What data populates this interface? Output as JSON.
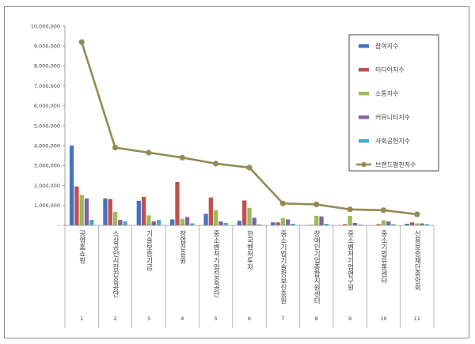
{
  "chart_data": {
    "type": "bar",
    "categories": [
      "공영홈쇼핑",
      "소상공인시장진흥공단",
      "기술보증기금",
      "창업진흥원",
      "중소벤처기업진흥공단",
      "한국벤처투자",
      "중소기업기술정보진흥원",
      "장애인기업종합지원센터",
      "중소벤처기업연구원",
      "중소기업유통센터",
      "신용보증재단중앙회"
    ],
    "indices": [
      "1",
      "2",
      "3",
      "4",
      "5",
      "6",
      "7",
      "8",
      "9",
      "10",
      "11"
    ],
    "ylim": [
      0,
      10000000
    ],
    "yticks": [
      0,
      1000000,
      2000000,
      3000000,
      4000000,
      5000000,
      6000000,
      7000000,
      8000000,
      9000000,
      10000000
    ],
    "ytick_labels": [
      "-",
      "1,000,000",
      "2,000,000",
      "3,000,000",
      "4,000,000",
      "5,000,000",
      "6,000,000",
      "7,000,000",
      "8,000,000",
      "9,000,000",
      "10,000,000"
    ],
    "series": [
      {
        "name": "참여지수",
        "type": "bar",
        "color": "#4472c4",
        "values": [
          4000000,
          1350000,
          1230000,
          300000,
          580000,
          230000,
          150000,
          20000,
          20000,
          20000,
          80000
        ]
      },
      {
        "name": "미디어지수",
        "type": "bar",
        "color": "#c0504d",
        "values": [
          1950000,
          1320000,
          1430000,
          2180000,
          1400000,
          1250000,
          150000,
          30000,
          60000,
          60000,
          150000
        ]
      },
      {
        "name": "소통지수",
        "type": "bar",
        "color": "#9bbb59",
        "values": [
          1530000,
          680000,
          500000,
          330000,
          760000,
          880000,
          370000,
          480000,
          480000,
          260000,
          100000
        ]
      },
      {
        "name": "커뮤니티지수",
        "type": "bar",
        "color": "#8064a2",
        "values": [
          1350000,
          280000,
          200000,
          420000,
          200000,
          380000,
          300000,
          450000,
          120000,
          200000,
          100000
        ]
      },
      {
        "name": "사회공헌지수",
        "type": "bar",
        "color": "#4bacc6",
        "values": [
          280000,
          200000,
          270000,
          100000,
          120000,
          50000,
          80000,
          80000,
          40000,
          60000,
          60000
        ]
      },
      {
        "name": "브랜드평판지수",
        "type": "line",
        "color": "#948a54",
        "values": [
          9200000,
          3900000,
          3650000,
          3400000,
          3100000,
          2900000,
          1100000,
          1050000,
          800000,
          760000,
          550000
        ]
      }
    ],
    "grid": false,
    "legend_position": "right"
  }
}
